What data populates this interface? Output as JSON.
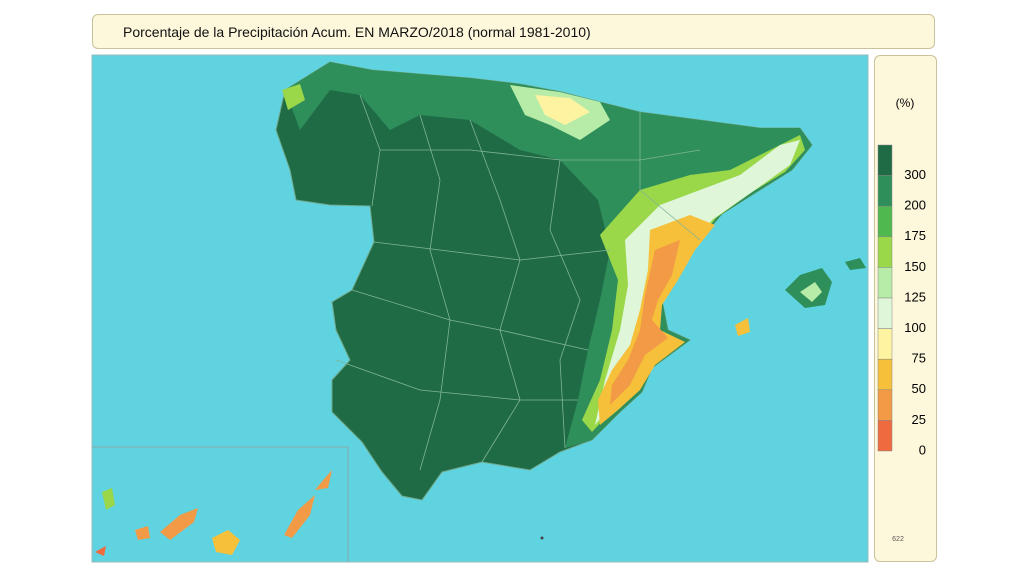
{
  "header": {
    "title": "Porcentaje de la Precipitación Acum. EN  MARZO/2018  (normal 1981-2010)"
  },
  "legend": {
    "unit": "(%)",
    "items": [
      {
        "label": "300",
        "color": "#1f6b46"
      },
      {
        "label": "200",
        "color": "#2f8f5a"
      },
      {
        "label": "175",
        "color": "#4fb84f"
      },
      {
        "label": "150",
        "color": "#9ad84a"
      },
      {
        "label": "125",
        "color": "#b7eba8"
      },
      {
        "label": "100",
        "color": "#dff6d8"
      },
      {
        "label": "75",
        "color": "#fdf3a0"
      },
      {
        "label": "50",
        "color": "#f6c03a"
      },
      {
        "label": "25",
        "color": "#f29a45"
      },
      {
        "label": "0",
        "color": "#ef6a3f"
      }
    ]
  },
  "footer": {
    "code": "622"
  }
}
